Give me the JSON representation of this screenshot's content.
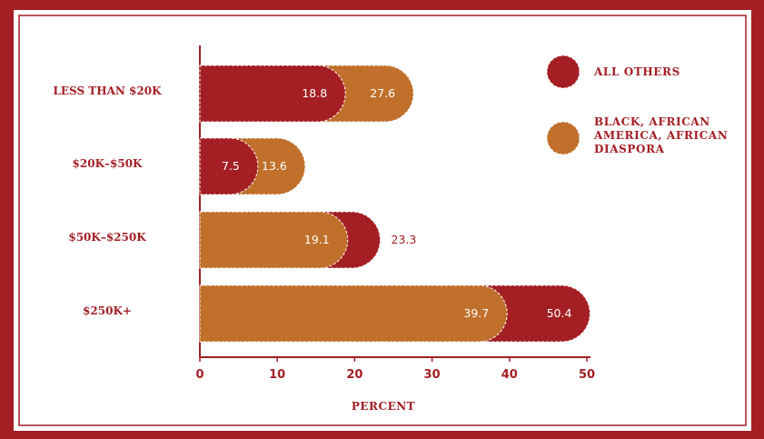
{
  "colors": {
    "red": "#a31f24",
    "orange": "#c0702b",
    "background": "#ffffff"
  },
  "chart_data": {
    "type": "bar",
    "orientation": "horizontal",
    "categories": [
      "LESS THAN $20K",
      "$20K–$50K",
      "$50K–$250K",
      "$250K+"
    ],
    "series": [
      {
        "name": "ALL OTHERS",
        "color": "#a31f24",
        "values": [
          18.8,
          7.5,
          23.3,
          50.4
        ]
      },
      {
        "name": "BLACK, AFRICAN AMERICA, AFRICAN DIASPORA",
        "color": "#c0702b",
        "values": [
          27.6,
          13.6,
          19.1,
          39.7
        ]
      }
    ],
    "xlabel": "PERCENT",
    "xlim": [
      0,
      50
    ],
    "xticks": [
      0,
      10,
      20,
      30,
      40,
      50
    ],
    "grid": false,
    "legend_position": "top-right",
    "data_labels": true
  }
}
